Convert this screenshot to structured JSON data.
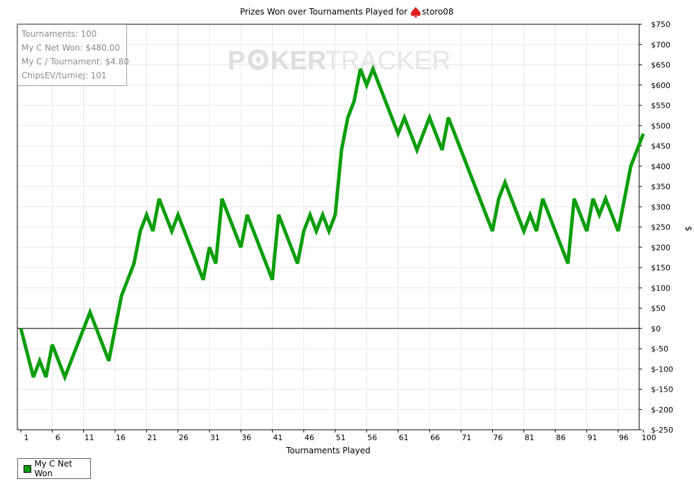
{
  "colors": {
    "line": "#0c9e0c",
    "grid": "#e6e6e6",
    "zero_line": "#000000",
    "watermark": "#d9d9d9",
    "suit_icon": "#e02020"
  },
  "chart_data": {
    "type": "line",
    "title_prefix": "Prizes Won over Tournaments Played for",
    "title_icon": "spade-suit-icon",
    "title_player": "storo08",
    "xlabel": "Tournaments Played",
    "ylabel": "$",
    "xlim": [
      1,
      100
    ],
    "ylim": [
      -250,
      750
    ],
    "x_ticks": [
      1,
      6,
      11,
      16,
      21,
      26,
      31,
      36,
      41,
      46,
      51,
      56,
      61,
      66,
      71,
      76,
      81,
      86,
      91,
      96,
      100
    ],
    "y_ticks": [
      750,
      700,
      650,
      600,
      550,
      500,
      450,
      400,
      350,
      300,
      250,
      200,
      150,
      100,
      50,
      0,
      -50,
      -100,
      -150,
      -200,
      -250
    ],
    "y_tick_labels": [
      "$750",
      "$700",
      "$650",
      "$600",
      "$550",
      "$500",
      "$450",
      "$400",
      "$350",
      "$300",
      "$250",
      "$200",
      "$150",
      "$100",
      "$50",
      "$0",
      "$-50",
      "$-100",
      "$-150",
      "$-200",
      "$-250"
    ],
    "grid": true,
    "legend_position": "bottom-left",
    "series": [
      {
        "name": "My C Net Won",
        "x": [
          1,
          3,
          4,
          5,
          6,
          8,
          12,
          15,
          17,
          19,
          20,
          21,
          22,
          23,
          25,
          26,
          30,
          31,
          32,
          33,
          36,
          37,
          41,
          42,
          45,
          46,
          47,
          48,
          49,
          50,
          51,
          52,
          53,
          54,
          55,
          56,
          57,
          61,
          62,
          64,
          66,
          68,
          69,
          76,
          77,
          78,
          81,
          82,
          83,
          84,
          88,
          89,
          91,
          92,
          93,
          94,
          96,
          98,
          100
        ],
        "values": [
          0,
          -120,
          -80,
          -120,
          -40,
          -120,
          40,
          -80,
          80,
          160,
          240,
          280,
          240,
          320,
          240,
          280,
          120,
          200,
          160,
          320,
          200,
          280,
          120,
          280,
          160,
          240,
          280,
          240,
          280,
          240,
          280,
          440,
          520,
          560,
          640,
          600,
          640,
          480,
          520,
          440,
          520,
          440,
          520,
          240,
          320,
          360,
          240,
          280,
          240,
          320,
          160,
          320,
          240,
          320,
          280,
          320,
          240,
          400,
          480
        ]
      }
    ]
  },
  "stats_box": {
    "lines": [
      "Tournaments: 100",
      "My C Net Won: $480.00",
      "My C / Tournament: $4.80",
      "ChipsEV/turniej: 101"
    ]
  },
  "watermark": {
    "left": "P",
    "mid": "KER",
    "right": "TRACKER"
  },
  "legend": {
    "label": "My C Net Won"
  }
}
